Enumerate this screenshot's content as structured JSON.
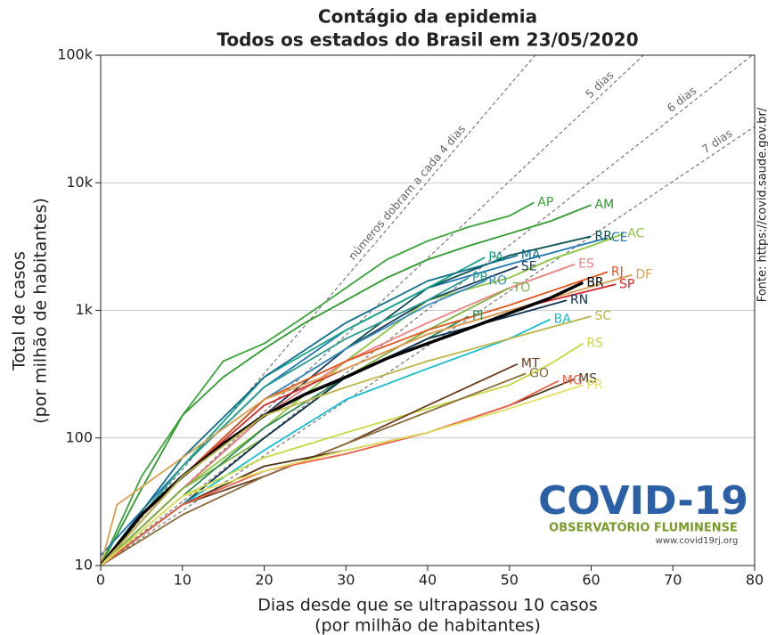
{
  "chart_data": {
    "type": "line",
    "log_y": true,
    "grid": true,
    "title": [
      "Contágio da epidemia",
      "Todos os estados do Brasil em 23/05/2020"
    ],
    "xlabel": [
      "Dias desde que se ultrapassou 10 casos",
      "(por milhão de habitantes)"
    ],
    "ylabel": [
      "Total de casos",
      "(por milhão de habitantes)"
    ],
    "xlim": [
      0,
      80
    ],
    "ylim": [
      10,
      100000
    ],
    "xticks": [
      0,
      10,
      20,
      30,
      40,
      50,
      60,
      70,
      80
    ],
    "yticks": [
      10,
      100,
      {
        "value": 1000,
        "label": "1k"
      },
      {
        "value": 10000,
        "label": "10k"
      },
      {
        "value": 100000,
        "label": "100k"
      }
    ],
    "reference_lines": [
      {
        "label": "números dobram a cada 4 dias",
        "x": [
          0,
          53.15
        ],
        "values": [
          10,
          100000
        ]
      },
      {
        "label": "5 dias",
        "x": [
          0,
          66.4
        ],
        "values": [
          10,
          100000
        ]
      },
      {
        "label": "6 dias",
        "x": [
          0,
          79.7
        ],
        "values": [
          10,
          100000
        ]
      },
      {
        "label": "7 dias",
        "x": [
          0,
          80
        ],
        "values": [
          10,
          27600
        ]
      }
    ],
    "series": [
      {
        "name": "AP",
        "color": "#3aa53a",
        "x": [
          0,
          5,
          10,
          15,
          20,
          25,
          30,
          35,
          40,
          45,
          50,
          53
        ],
        "values": [
          10,
          50,
          150,
          400,
          550,
          900,
          1500,
          2500,
          3500,
          4500,
          5500,
          7000
        ]
      },
      {
        "name": "AM",
        "color": "#2e9a2e",
        "x": [
          0,
          5,
          10,
          15,
          20,
          25,
          30,
          35,
          40,
          45,
          50,
          55,
          60
        ],
        "values": [
          10,
          40,
          150,
          300,
          500,
          800,
          1200,
          1800,
          2500,
          3200,
          4000,
          5000,
          6700
        ]
      },
      {
        "name": "AC",
        "color": "#8cc63f",
        "x": [
          0,
          10,
          20,
          30,
          40,
          50,
          55,
          60,
          64
        ],
        "values": [
          10,
          40,
          120,
          400,
          1200,
          1800,
          2500,
          3200,
          4000
        ]
      },
      {
        "name": "CE",
        "color": "#1f77b4",
        "x": [
          0,
          10,
          20,
          30,
          40,
          50,
          55,
          62
        ],
        "values": [
          12,
          60,
          250,
          700,
          1500,
          2300,
          2800,
          3700
        ]
      },
      {
        "name": "RR",
        "color": "#0b4f4f",
        "x": [
          0,
          10,
          20,
          30,
          40,
          50,
          60
        ],
        "values": [
          10,
          50,
          200,
          500,
          1500,
          2700,
          3800
        ]
      },
      {
        "name": "PA",
        "color": "#17a589",
        "x": [
          0,
          10,
          20,
          30,
          40,
          47
        ],
        "values": [
          10,
          60,
          300,
          700,
          1500,
          2600
        ]
      },
      {
        "name": "MA",
        "color": "#0e6e8c",
        "x": [
          0,
          10,
          20,
          30,
          40,
          51
        ],
        "values": [
          10,
          70,
          300,
          800,
          1700,
          2700
        ]
      },
      {
        "name": "SE",
        "color": "#1a3a5a",
        "x": [
          0,
          10,
          20,
          30,
          40,
          51
        ],
        "values": [
          10,
          40,
          150,
          500,
          1200,
          2200
        ]
      },
      {
        "name": "ES",
        "color": "#f08080",
        "x": [
          0,
          10,
          20,
          30,
          40,
          50,
          58
        ],
        "values": [
          10,
          40,
          150,
          400,
          800,
          1500,
          2300
        ]
      },
      {
        "name": "PB",
        "color": "#2a9d8f",
        "x": [
          0,
          10,
          20,
          30,
          40,
          45
        ],
        "values": [
          10,
          60,
          250,
          600,
          1200,
          1800
        ]
      },
      {
        "name": "RO",
        "color": "#3c8dbc",
        "x": [
          0,
          10,
          20,
          30,
          40,
          47
        ],
        "values": [
          10,
          50,
          200,
          500,
          1100,
          1700
        ]
      },
      {
        "name": "TO",
        "color": "#7cb342",
        "x": [
          0,
          10,
          20,
          30,
          40,
          50
        ],
        "values": [
          10,
          40,
          100,
          300,
          700,
          1500
        ]
      },
      {
        "name": "PI",
        "color": "#2e8b57",
        "x": [
          0,
          10,
          20,
          30,
          40,
          45
        ],
        "values": [
          10,
          35,
          120,
          300,
          600,
          900
        ]
      },
      {
        "name": "RN",
        "color": "#0d2f4f",
        "x": [
          0,
          10,
          20,
          30,
          40,
          50,
          57
        ],
        "values": [
          10,
          30,
          100,
          300,
          600,
          900,
          1200
        ]
      },
      {
        "name": "RJ",
        "color": "#e6551d",
        "x": [
          0,
          10,
          20,
          30,
          40,
          50,
          62
        ],
        "values": [
          10,
          50,
          200,
          400,
          700,
          1100,
          2000
        ]
      },
      {
        "name": "SP",
        "color": "#d62728",
        "x": [
          0,
          10,
          20,
          30,
          40,
          50,
          63
        ],
        "values": [
          10,
          50,
          180,
          350,
          650,
          1000,
          1600
        ]
      },
      {
        "name": "DF",
        "color": "#d8a050",
        "x": [
          0,
          2,
          10,
          20,
          30,
          40,
          50,
          65
        ],
        "values": [
          10,
          30,
          70,
          200,
          350,
          650,
          1000,
          1900
        ]
      },
      {
        "name": "BR",
        "color": "#000000",
        "x": [
          0,
          5,
          10,
          15,
          20,
          25,
          30,
          35,
          40,
          45,
          50,
          55,
          59
        ],
        "values": [
          10,
          25,
          50,
          90,
          150,
          220,
          300,
          420,
          550,
          720,
          950,
          1250,
          1650
        ]
      },
      {
        "name": "BA",
        "color": "#17becf",
        "x": [
          0,
          10,
          20,
          30,
          40,
          50,
          55
        ],
        "values": [
          10,
          30,
          80,
          200,
          350,
          600,
          850
        ]
      },
      {
        "name": "SC",
        "color": "#bdb54a",
        "x": [
          0,
          10,
          20,
          30,
          40,
          50,
          60
        ],
        "values": [
          10,
          50,
          150,
          250,
          400,
          600,
          900
        ]
      },
      {
        "name": "RS",
        "color": "#c7d843",
        "x": [
          0,
          10,
          20,
          30,
          40,
          50,
          55,
          59
        ],
        "values": [
          10,
          35,
          70,
          110,
          170,
          260,
          380,
          550
        ]
      },
      {
        "name": "MT",
        "color": "#6b3e1e",
        "x": [
          0,
          10,
          20,
          30,
          40,
          51
        ],
        "values": [
          10,
          30,
          50,
          90,
          180,
          380
        ]
      },
      {
        "name": "GO",
        "color": "#8c6d3f",
        "x": [
          0,
          10,
          20,
          30,
          40,
          52
        ],
        "values": [
          10,
          25,
          50,
          90,
          160,
          320
        ]
      },
      {
        "name": "MS",
        "color": "#4d3319",
        "x": [
          0,
          10,
          20,
          30,
          40,
          50,
          58
        ],
        "values": [
          10,
          30,
          60,
          80,
          110,
          180,
          290
        ]
      },
      {
        "name": "MG",
        "color": "#f0604a",
        "x": [
          0,
          10,
          20,
          30,
          40,
          50,
          56
        ],
        "values": [
          10,
          30,
          55,
          75,
          110,
          180,
          280
        ]
      },
      {
        "name": "PR",
        "color": "#e0e060",
        "x": [
          0,
          10,
          20,
          30,
          40,
          50,
          59
        ],
        "values": [
          10,
          35,
          55,
          80,
          110,
          170,
          260
        ]
      }
    ],
    "annotations": [
      "Fonte: https://covid.saude.gov.br/",
      "COVID-19",
      "OBSERVATÓRIO FLUMINENSE",
      "www.covid19rj.org"
    ]
  }
}
